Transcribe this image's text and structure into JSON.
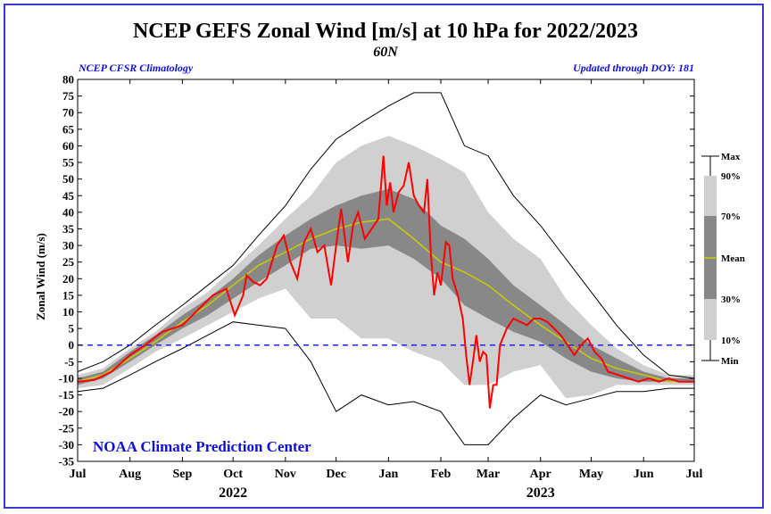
{
  "header": {
    "title": "NCEP GEFS Zonal Wind [m/s] at 10 hPa for 2022/2023",
    "subtitle": "60N",
    "left_note": "NCEP CFSR Climatology",
    "right_note": "Updated through DOY: 181"
  },
  "footer": {
    "credit": "NOAA Climate Prediction Center"
  },
  "colors": {
    "observed": "#ff0000",
    "mean": "#cccc00",
    "band_10_90": "#d0d0d0",
    "band_30_70": "#888888",
    "extremes": "#000000",
    "zero_line": "#2020ff",
    "frame": "#3a3ad0",
    "credit": "#1010d0"
  },
  "chart_data": {
    "type": "area",
    "ylabel": "Zonal Wind (m/s)",
    "ylim": [
      -35,
      80
    ],
    "yticks": [
      -35,
      -30,
      -25,
      -20,
      -15,
      -10,
      -5,
      0,
      5,
      10,
      15,
      20,
      25,
      30,
      35,
      40,
      45,
      50,
      55,
      60,
      65,
      70,
      75,
      80
    ],
    "x_tick_labels": [
      "Jul",
      "Aug",
      "Sep",
      "Oct",
      "Nov",
      "Dec",
      "Jan",
      "Feb",
      "Mar",
      "Apr",
      "May",
      "Jun",
      "Jul"
    ],
    "x_tick_days": [
      0,
      31,
      62,
      92,
      123,
      153,
      184,
      215,
      243,
      274,
      304,
      335,
      365
    ],
    "year_labels": [
      {
        "text": "2022",
        "day": 92
      },
      {
        "text": "2023",
        "day": 274
      }
    ],
    "zero_reference": 0,
    "legend": {
      "items": [
        {
          "label": "Max",
          "value_key": "max"
        },
        {
          "label": "90%",
          "value_key": "p90"
        },
        {
          "label": "70%",
          "value_key": "p70"
        },
        {
          "label": "Mean",
          "value_key": "mean"
        },
        {
          "label": "30%",
          "value_key": "p30"
        },
        {
          "label": "10%",
          "value_key": "p10"
        },
        {
          "label": "Min",
          "value_key": "min"
        }
      ]
    },
    "climatology": {
      "day": [
        0,
        15,
        31,
        46,
        62,
        77,
        92,
        107,
        123,
        138,
        153,
        168,
        184,
        199,
        215,
        229,
        243,
        258,
        274,
        289,
        304,
        319,
        335,
        350,
        365
      ],
      "min": [
        -14,
        -13,
        -9,
        -5,
        -1,
        3,
        7,
        6,
        5,
        -5,
        -20,
        -15,
        -18,
        -17,
        -20,
        -30,
        -30,
        -22,
        -15,
        -18,
        -16,
        -14,
        -14,
        -13,
        -13
      ],
      "p10": [
        -13,
        -12,
        -7,
        -2,
        2,
        6,
        10,
        14,
        17,
        8,
        8,
        2,
        2,
        -2,
        -5,
        -12,
        -12,
        -8,
        -6,
        -16,
        -15,
        -12,
        -12,
        -12,
        -12
      ],
      "p30": [
        -12,
        -10,
        -5,
        0,
        5,
        9,
        14,
        19,
        24,
        29,
        30,
        29,
        30,
        26,
        20,
        12,
        8,
        4,
        1,
        -4,
        -8,
        -10,
        -11,
        -11,
        -11
      ],
      "mean": [
        -11,
        -9,
        -4,
        1,
        7,
        12,
        18,
        24,
        28,
        32,
        35,
        37,
        38,
        32,
        25,
        22,
        18,
        12,
        6,
        1,
        -4,
        -7,
        -9,
        -11,
        -11
      ],
      "p70": [
        -10,
        -8,
        -2,
        3,
        9,
        14,
        20,
        27,
        33,
        38,
        42,
        45,
        47,
        44,
        36,
        32,
        26,
        18,
        12,
        6,
        0,
        -4,
        -8,
        -10,
        -10
      ],
      "p90": [
        -9,
        -7,
        -1,
        4,
        11,
        16,
        23,
        30,
        38,
        45,
        55,
        60,
        63,
        60,
        56,
        52,
        40,
        32,
        26,
        14,
        6,
        -1,
        -6,
        -9,
        -9
      ],
      "max": [
        -8,
        -5,
        0,
        6,
        12,
        18,
        24,
        33,
        42,
        53,
        62,
        67,
        72,
        76,
        76,
        60,
        57,
        45,
        36,
        26,
        16,
        6,
        -3,
        -9,
        -10
      ]
    },
    "series": [
      {
        "day": [
          0,
          10,
          20,
          31,
          40,
          50,
          62,
          70,
          80,
          88,
          93,
          98,
          100,
          104,
          108,
          112,
          118,
          122,
          126,
          130,
          134,
          138,
          142,
          146,
          150,
          153,
          156,
          160,
          163,
          166,
          170,
          174,
          178,
          181,
          183,
          185,
          187,
          190,
          193,
          196,
          199,
          202,
          205,
          207,
          209,
          211,
          213,
          215,
          218,
          220,
          222,
          225,
          228,
          230,
          232,
          234,
          236,
          238,
          240,
          242,
          244,
          246,
          248,
          250,
          254,
          258,
          262,
          266,
          270,
          274,
          278,
          282,
          286,
          290,
          294,
          298,
          302,
          306,
          310,
          314,
          320,
          326,
          332,
          338,
          344,
          350,
          356,
          362,
          365
        ],
        "value": [
          -11,
          -10.5,
          -8,
          -3,
          0,
          4,
          6,
          10,
          15,
          17,
          9,
          15,
          21,
          19,
          18,
          20,
          30,
          33,
          25,
          20,
          31,
          35,
          28,
          30,
          18,
          30,
          41,
          25,
          36,
          40,
          32,
          35,
          38,
          57,
          42,
          49,
          40,
          46,
          48,
          55,
          45,
          42,
          40,
          50,
          28,
          15,
          22,
          18,
          31,
          30,
          20,
          15,
          8,
          -3,
          -12,
          -5,
          3,
          -5,
          -2,
          -3,
          -19,
          -12,
          -12,
          0,
          5,
          8,
          7,
          6,
          8,
          8,
          7,
          5,
          3,
          0,
          -3,
          0,
          2,
          -2,
          -4,
          -8,
          -9,
          -10,
          -11,
          -10,
          -11,
          -10,
          -11,
          -11,
          -11
        ]
      }
    ]
  }
}
